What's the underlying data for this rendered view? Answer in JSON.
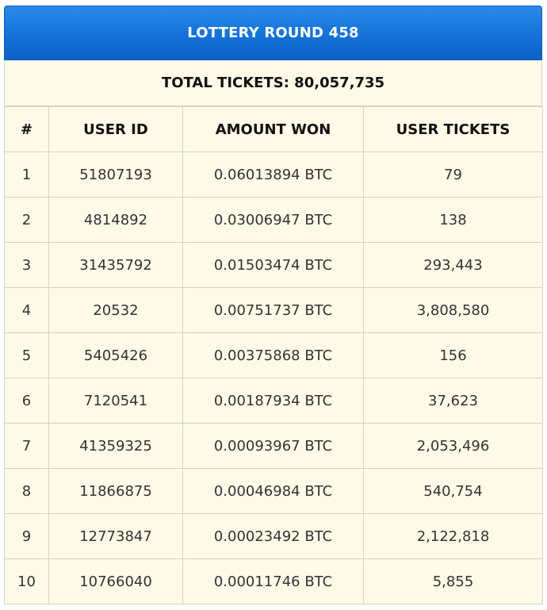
{
  "header": {
    "title": "LOTTERY ROUND 458"
  },
  "summary": {
    "total_tickets": "TOTAL TICKETS: 80,057,735"
  },
  "table": {
    "columns": [
      "#",
      "USER ID",
      "AMOUNT WON",
      "USER TICKETS"
    ],
    "rows": [
      {
        "rank": "1",
        "user_id": "51807193",
        "amount_won": "0.06013894 BTC",
        "user_tickets": "79"
      },
      {
        "rank": "2",
        "user_id": "4814892",
        "amount_won": "0.03006947 BTC",
        "user_tickets": "138"
      },
      {
        "rank": "3",
        "user_id": "31435792",
        "amount_won": "0.01503474 BTC",
        "user_tickets": "293,443"
      },
      {
        "rank": "4",
        "user_id": "20532",
        "amount_won": "0.00751737 BTC",
        "user_tickets": "3,808,580"
      },
      {
        "rank": "5",
        "user_id": "5405426",
        "amount_won": "0.00375868 BTC",
        "user_tickets": "156"
      },
      {
        "rank": "6",
        "user_id": "7120541",
        "amount_won": "0.00187934 BTC",
        "user_tickets": "37,623"
      },
      {
        "rank": "7",
        "user_id": "41359325",
        "amount_won": "0.00093967 BTC",
        "user_tickets": "2,053,496"
      },
      {
        "rank": "8",
        "user_id": "11866875",
        "amount_won": "0.00046984 BTC",
        "user_tickets": "540,754"
      },
      {
        "rank": "9",
        "user_id": "12773847",
        "amount_won": "0.00023492 BTC",
        "user_tickets": "2,122,818"
      },
      {
        "rank": "10",
        "user_id": "10766040",
        "amount_won": "0.00011746 BTC",
        "user_tickets": "5,855"
      }
    ]
  },
  "colors": {
    "header_blue": "#1371d8",
    "table_background": "#fdfae8",
    "border": "#d6d3c2"
  }
}
